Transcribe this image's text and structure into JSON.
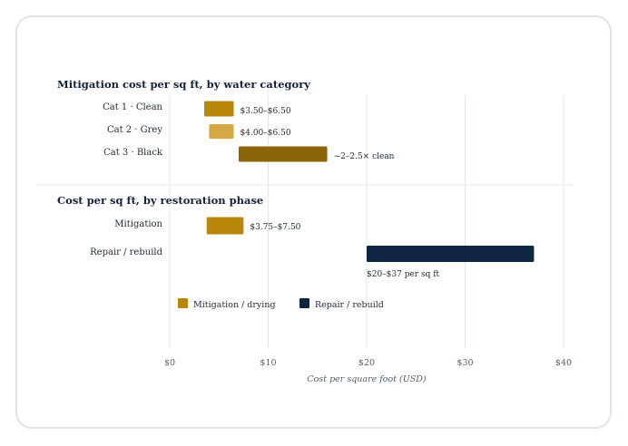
{
  "chart_data": {
    "type": "bar",
    "orientation": "horizontal-range",
    "xlabel": "Cost per square foot (USD)",
    "xlim": [
      0,
      40
    ],
    "xticks": [
      0,
      10,
      20,
      30,
      40
    ],
    "xtick_labels": [
      "$0",
      "$10",
      "$20",
      "$30",
      "$40"
    ],
    "grid": true,
    "panels": [
      {
        "title": "Mitigation cost per sq ft, by water category",
        "bars": [
          {
            "category": "Cat 1 · Clean",
            "start": 3.5,
            "end": 6.5,
            "label": "$3.50–$6.50",
            "series": "Mitigation / drying",
            "color": "#b8860b"
          },
          {
            "category": "Cat 2 · Grey",
            "start": 4.0,
            "end": 6.5,
            "label": "$4.00–$6.50",
            "series": "Mitigation / drying",
            "color": "#d4a843"
          },
          {
            "category": "Cat 3 · Black",
            "start": 7.0,
            "end": 16.0,
            "label": "~2–2.5× clean",
            "series": "Mitigation / drying",
            "color": "#8b6508"
          }
        ]
      },
      {
        "title": "Cost per sq ft, by restoration phase",
        "bars": [
          {
            "category": "Mitigation",
            "start": 3.75,
            "end": 7.5,
            "label": "$3.75–$7.50",
            "series": "Mitigation / drying",
            "color": "#b8860b"
          },
          {
            "category": "Repair / rebuild",
            "start": 20,
            "end": 37,
            "label": "$20–$37 per sq ft",
            "series": "Repair / rebuild",
            "color": "#0f2541"
          }
        ]
      }
    ],
    "legend": {
      "placement": "bottom-left",
      "items": [
        {
          "label": "Mitigation / drying",
          "color": "#b8860b"
        },
        {
          "label": "Repair / rebuild",
          "color": "#0f2541"
        }
      ]
    }
  }
}
